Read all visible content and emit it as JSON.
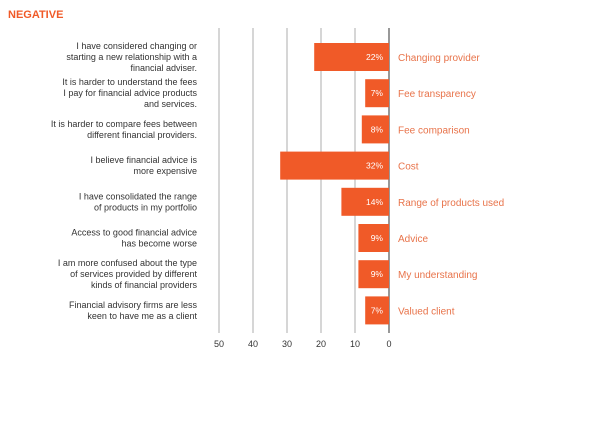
{
  "section_title": "NEGATIVE",
  "colors": {
    "accent": "#f05a28",
    "category_text": "#e8734a",
    "grid": "#9a9a9a",
    "axis": "#555555",
    "statement_text": "#333333"
  },
  "chart_data": {
    "type": "bar",
    "orientation": "horizontal",
    "direction": "right-to-left",
    "xlim": [
      0,
      50
    ],
    "x_ticks": [
      50,
      40,
      30,
      20,
      10,
      0
    ],
    "grid": true,
    "categories": [
      "Changing provider",
      "Fee transparency",
      "Fee comparison",
      "Cost",
      "Range of products used",
      "Advice",
      "My understanding",
      "Valued client"
    ],
    "statements": [
      [
        "I have considered changing or",
        "starting a new relationship with a",
        "financial adviser."
      ],
      [
        "It is harder to understand the fees",
        "I pay for financial advice products",
        "and services."
      ],
      [
        "It is harder to compare fees between",
        "different financial providers."
      ],
      [
        "I believe financial advice is",
        "more expensive"
      ],
      [
        "I have consolidated the range",
        "of products in my portfolio"
      ],
      [
        "Access to good financial advice",
        "has become worse"
      ],
      [
        "I am more confused about the type",
        "of services provided by different",
        "kinds of financial providers"
      ],
      [
        "Financial advisory firms are less",
        "keen to have me as a client"
      ]
    ],
    "values": [
      22,
      7,
      8,
      32,
      14,
      9,
      9,
      7
    ],
    "data_labels": [
      "22%",
      "7%",
      "8%",
      "32%",
      "14%",
      "9%",
      "9%",
      "7%"
    ]
  }
}
